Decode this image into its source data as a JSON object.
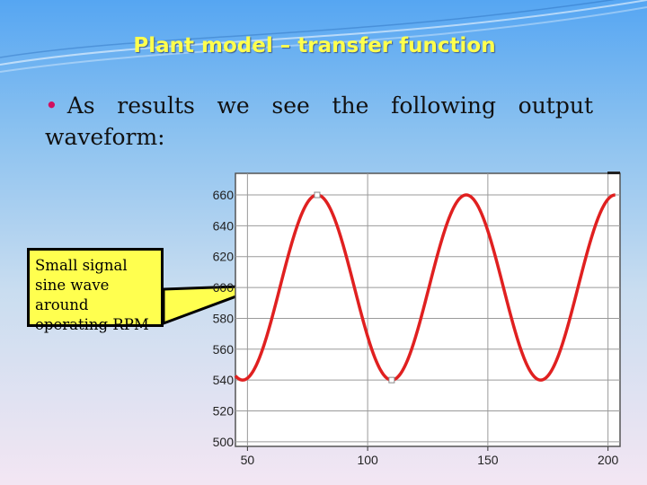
{
  "slide": {
    "title": "Plant model – transfer function",
    "bullet_text": "As results we see the following output waveform:",
    "callout_text": "Small signal sine wave around operating RPM"
  },
  "colors": {
    "title": "#ffff4d",
    "bullet_marker": "#d01060",
    "curve": "#e02020",
    "callout_fill": "#ffff4f"
  },
  "chart_data": {
    "type": "line",
    "x_ticks": [
      50,
      100,
      150,
      200
    ],
    "y_ticks": [
      500,
      520,
      540,
      560,
      580,
      600,
      620,
      640,
      660
    ],
    "xlim": [
      45,
      205
    ],
    "ylim": [
      497,
      674
    ],
    "grid": true,
    "series": [
      {
        "color": "#e02020",
        "waveform": {
          "offset": 600,
          "amplitude": 60,
          "period": 62,
          "first_peak_x": 79
        },
        "x_range": [
          45,
          203
        ]
      }
    ],
    "markers": [
      {
        "x": 79,
        "y": 660
      },
      {
        "x": 110,
        "y": 540
      }
    ]
  }
}
